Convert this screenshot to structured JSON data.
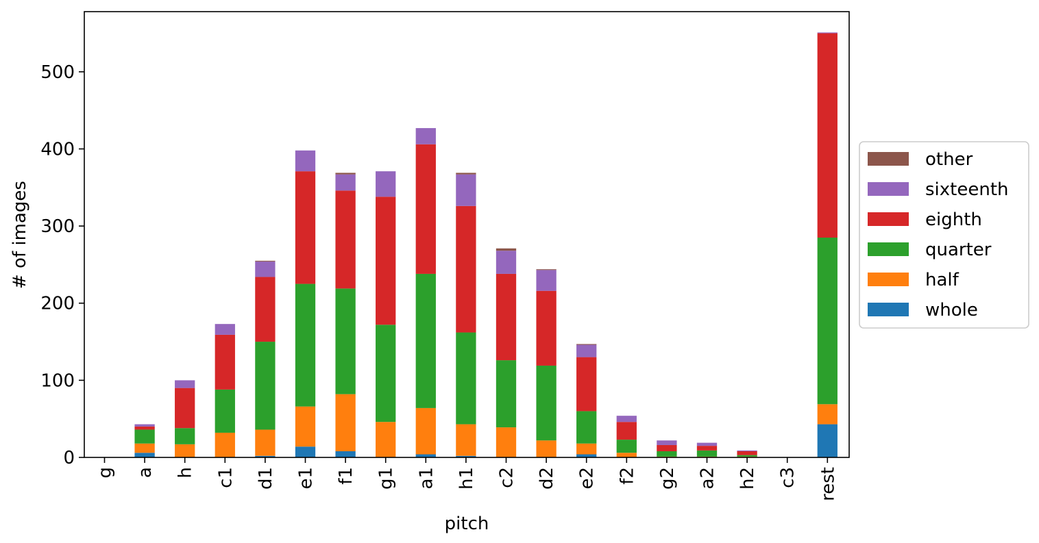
{
  "chart_data": {
    "type": "bar",
    "stacked": true,
    "title": "",
    "xlabel": "pitch",
    "ylabel": "# of images",
    "ylim": [
      0,
      578
    ],
    "yticks": [
      0,
      100,
      200,
      300,
      400,
      500
    ],
    "grid": false,
    "legend_position": "center-right-outside",
    "categories": [
      "g",
      "a",
      "h",
      "c1",
      "d1",
      "e1",
      "f1",
      "g1",
      "a1",
      "h1",
      "c2",
      "d2",
      "e2",
      "f2",
      "g2",
      "a2",
      "h2",
      "c3",
      "rest"
    ],
    "series": [
      {
        "name": "whole",
        "color": "#1f77b4",
        "values": [
          0,
          6,
          0,
          0,
          2,
          14,
          8,
          0,
          4,
          2,
          0,
          0,
          4,
          0,
          0,
          0,
          0,
          0,
          43
        ]
      },
      {
        "name": "half",
        "color": "#ff7f0e",
        "values": [
          0,
          12,
          17,
          32,
          34,
          52,
          74,
          46,
          60,
          41,
          39,
          22,
          14,
          6,
          1,
          1,
          1,
          0,
          26
        ]
      },
      {
        "name": "quarter",
        "color": "#2ca02c",
        "values": [
          0,
          18,
          21,
          56,
          114,
          159,
          137,
          126,
          174,
          119,
          87,
          97,
          42,
          17,
          7,
          8,
          2,
          0,
          216
        ]
      },
      {
        "name": "eighth",
        "color": "#d62728",
        "values": [
          0,
          4,
          52,
          71,
          84,
          146,
          127,
          166,
          168,
          164,
          112,
          97,
          70,
          23,
          8,
          6,
          5,
          0,
          265
        ]
      },
      {
        "name": "sixteenth",
        "color": "#9467bd",
        "values": [
          0,
          3,
          10,
          14,
          20,
          27,
          21,
          33,
          21,
          41,
          30,
          27,
          16,
          8,
          6,
          4,
          1,
          0,
          1
        ]
      },
      {
        "name": "other",
        "color": "#8c564b",
        "values": [
          0,
          0,
          0,
          0,
          1,
          0,
          2,
          0,
          0,
          2,
          3,
          1,
          1,
          0,
          0,
          0,
          0,
          0,
          0
        ]
      }
    ]
  }
}
